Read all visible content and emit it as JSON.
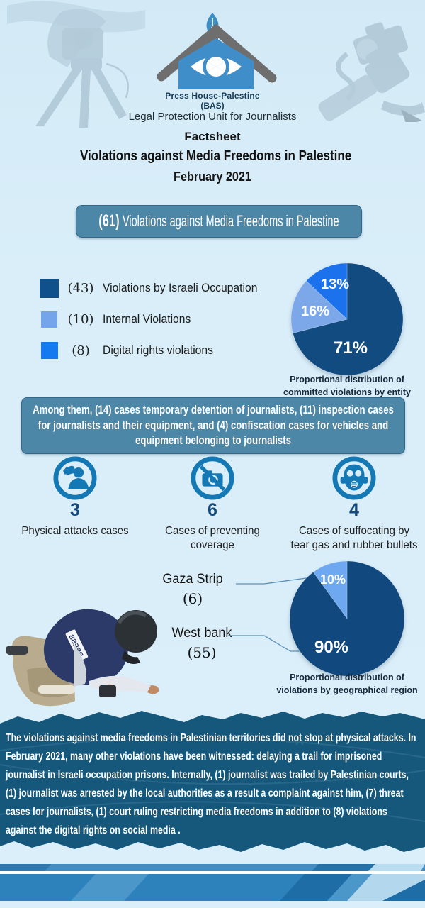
{
  "page": {
    "bg": "#d9eef9",
    "accent_banner_color": "#4d87a7",
    "dark_section_color": "#15587c",
    "icon_color": "#1478b5"
  },
  "logo": {
    "org_line1": "Press House-Palestine",
    "org_line2": "(BAS)",
    "unit": "Legal Protection Unit for Journalists"
  },
  "header": {
    "kicker": "Factsheet",
    "title": "Violations against Media Freedoms in Palestine",
    "period": "February 2021"
  },
  "headline_banner": {
    "count": "(61)",
    "text": "Violations against Media Freedoms in Palestine"
  },
  "legend": {
    "items": [
      {
        "count": "(43)",
        "label": "Violations by Israeli Occupation",
        "color": "#11518b"
      },
      {
        "count": "(10)",
        "label": "Internal Violations",
        "color": "#74a4ea"
      },
      {
        "count": "(8)",
        "label": "Digital rights violations",
        "color": "#1579f0"
      }
    ]
  },
  "chart_data": [
    {
      "type": "pie",
      "title": "Proportional distribution of committed violations by entity",
      "start_angle_deg": 0,
      "direction": "clockwise",
      "slices": [
        {
          "name": "violations-by-israeli-occupation",
          "label": "71%",
          "value": 71,
          "color": "#114b80"
        },
        {
          "name": "internal-violations",
          "label": "16%",
          "value": 16,
          "color": "#7ca8ea"
        },
        {
          "name": "digital-rights-violations",
          "label": "13%",
          "value": 13,
          "color": "#1c72ec"
        }
      ]
    },
    {
      "type": "pie",
      "title": "Proportional distribution of violations by geographical region",
      "start_angle_deg": 0,
      "direction": "clockwise",
      "slices": [
        {
          "name": "west-bank",
          "region": "West bank",
          "count": "(55)",
          "label": "90%",
          "value": 90,
          "color": "#11497e"
        },
        {
          "name": "gaza-strip",
          "region": "Gaza Strip",
          "count": "(6)",
          "label": "10%",
          "value": 10,
          "color": "#6ea8f0"
        }
      ]
    }
  ],
  "middle_banner": {
    "text": "Among them, (14) cases temporary detention of journalists, (11) inspection cases for journalists and their equipment, and (4) confiscation cases for vehicles and equipment belonging to journalists"
  },
  "stats": {
    "items": [
      {
        "count": "3",
        "label": "Physical attacks cases",
        "icon": "attack-person-icon"
      },
      {
        "count": "6",
        "label": "Cases of preventing coverage",
        "icon": "no-camera-icon"
      },
      {
        "count": "4",
        "label": "Cases of suffocating by tear gas and rubber bullets",
        "icon": "gas-mask-icon"
      }
    ]
  },
  "photo": {
    "vest_label": "PRESS"
  },
  "narrative": {
    "text": "The violations against media freedoms in Palestinian territories did not stop at physical attacks. In February 2021, many other violations have been witnessed: delaying a trail for imprisoned journalist in Israeli occupation prisons. Internally, (1) journalist was trailed by Palestinian courts, (1) journalist was arrested by the local authorities as a result a complaint against him, (7) threat cases for journalists, (1) court ruling restricting media freedoms in addition to (8) violations against the digital rights on social media ."
  }
}
